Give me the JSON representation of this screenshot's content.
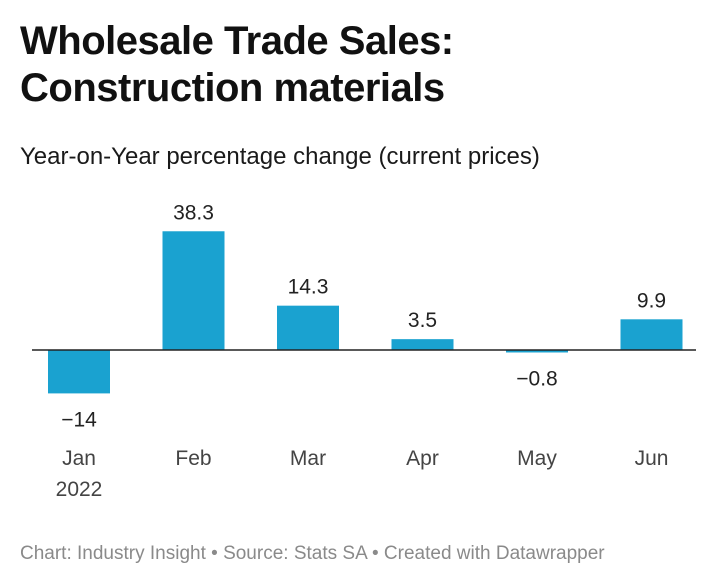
{
  "header": {
    "title_line1": "Wholesale Trade Sales:",
    "title_line2": "Construction materials",
    "subtitle": "Year-on-Year percentage change (current prices)"
  },
  "footer": {
    "credit": "Chart: Industry Insight • Source: Stats SA • Created with Datawrapper"
  },
  "colors": {
    "bar": "#1aa2d0",
    "axis": "#222222",
    "label": "#222222",
    "tick": "#444444"
  },
  "chart_data": {
    "type": "bar",
    "title": "Wholesale Trade Sales: Construction materials",
    "subtitle": "Year-on-Year percentage change (current prices)",
    "categories": [
      "Jan",
      "Feb",
      "Mar",
      "Apr",
      "May",
      "Jun"
    ],
    "category_sublabels": [
      "2022",
      "",
      "",
      "",
      "",
      ""
    ],
    "values": [
      -14,
      38.3,
      14.3,
      3.5,
      -0.8,
      9.9
    ],
    "value_labels": [
      "−14",
      "38.3",
      "14.3",
      "3.5",
      "−0.8",
      "9.9"
    ],
    "xlabel": "",
    "ylabel": "",
    "ylim": [
      -14,
      38.3
    ],
    "grid": false
  }
}
